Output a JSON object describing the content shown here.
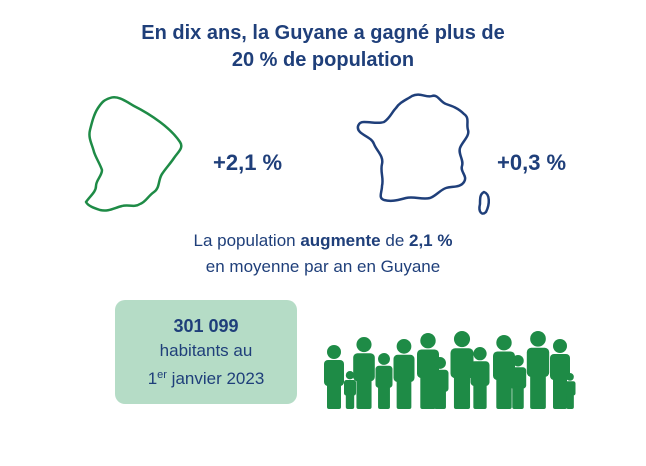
{
  "title": {
    "line1": "En dix ans, la Guyane a gagné plus de",
    "line2": "20 % de population"
  },
  "guyane": {
    "growth": "+2,1 %",
    "color": "#1e8b46"
  },
  "france": {
    "growth": "+0,3 %",
    "color": "#1f3f7a"
  },
  "description": {
    "part1": "La population ",
    "bold1": "augmente",
    "part2": " de ",
    "bold2": "2,1 %",
    "line2": "en moyenne par an en Guyane"
  },
  "population_box": {
    "number": "301 099",
    "line1": "habitants au",
    "ordinal": "1",
    "superscript": "er",
    "date": " janvier 2023",
    "background": "#b5dcc6"
  },
  "icons": {
    "guyane_map": "guyane-map-icon",
    "france_map": "france-map-icon",
    "people_group": "people-group-icon"
  }
}
